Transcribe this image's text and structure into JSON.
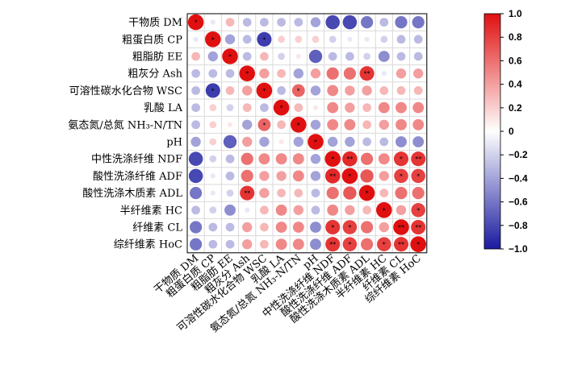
{
  "chart_data": {
    "type": "heatmap",
    "title": "",
    "variables": [
      "干物质 DM",
      "粗蛋白质 CP",
      "粗脂肪 EE",
      "粗灰分 Ash",
      "可溶性碳水化合物 WSC",
      "乳酸 LA",
      "氨态氮/总氮 NH₃-N/TN",
      "pH",
      "中性洗涤纤维 NDF",
      "酸性洗涤纤维 ADF",
      "酸性洗涤木质素 ADL",
      "半纤维素 HC",
      "纤维素 CL",
      "综纤维素 HoC"
    ],
    "matrix": [
      [
        1.0,
        -0.1,
        0.3,
        -0.3,
        -0.3,
        -0.3,
        -0.3,
        -0.4,
        -0.8,
        -0.8,
        -0.6,
        -0.3,
        -0.6,
        -0.6
      ],
      [
        -0.1,
        1.0,
        -0.4,
        -0.3,
        -0.85,
        0.2,
        0.2,
        0.2,
        -0.2,
        -0.1,
        -0.1,
        -0.2,
        -0.3,
        -0.3
      ],
      [
        0.3,
        -0.4,
        1.0,
        -0.3,
        0.3,
        -0.2,
        0.1,
        -0.7,
        -0.3,
        -0.3,
        -0.2,
        -0.5,
        -0.3,
        -0.3
      ],
      [
        -0.3,
        -0.3,
        -0.3,
        1.0,
        0.4,
        0.3,
        -0.4,
        0.4,
        0.6,
        0.6,
        0.85,
        -0.1,
        0.4,
        0.4
      ],
      [
        -0.3,
        -0.85,
        0.3,
        0.4,
        1.0,
        -0.3,
        0.65,
        -0.4,
        0.5,
        0.4,
        0.4,
        0.3,
        0.3,
        0.3
      ],
      [
        -0.3,
        0.2,
        -0.2,
        0.3,
        -0.3,
        1.0,
        0.3,
        0.1,
        0.5,
        0.4,
        0.3,
        0.5,
        0.5,
        0.5
      ],
      [
        -0.3,
        0.2,
        0.1,
        -0.4,
        0.65,
        0.3,
        1.0,
        -0.4,
        0.5,
        0.5,
        0.3,
        0.4,
        0.5,
        0.5
      ],
      [
        -0.4,
        0.2,
        -0.7,
        0.4,
        -0.4,
        0.1,
        -0.4,
        1.0,
        -0.4,
        -0.4,
        -0.3,
        -0.3,
        -0.5,
        -0.5
      ],
      [
        -0.8,
        -0.2,
        -0.3,
        0.6,
        0.5,
        0.5,
        0.5,
        -0.4,
        1.0,
        0.9,
        0.6,
        0.5,
        0.85,
        0.85
      ],
      [
        -0.8,
        -0.1,
        -0.3,
        0.6,
        0.4,
        0.4,
        0.5,
        -0.4,
        0.9,
        1.0,
        0.7,
        0.4,
        0.8,
        0.8
      ],
      [
        -0.6,
        -0.1,
        -0.2,
        0.85,
        0.4,
        0.3,
        0.3,
        -0.3,
        0.6,
        0.7,
        1.0,
        0.3,
        0.6,
        0.6
      ],
      [
        -0.3,
        -0.2,
        -0.5,
        -0.1,
        0.3,
        0.5,
        0.4,
        -0.3,
        0.5,
        0.4,
        0.3,
        1.0,
        0.4,
        0.8
      ],
      [
        -0.6,
        -0.3,
        -0.3,
        0.4,
        0.3,
        0.5,
        0.5,
        -0.5,
        0.85,
        0.8,
        0.6,
        0.4,
        1.0,
        0.85
      ],
      [
        -0.6,
        -0.3,
        -0.3,
        0.4,
        0.3,
        0.5,
        0.5,
        -0.5,
        0.85,
        0.8,
        0.6,
        0.8,
        0.85,
        1.0
      ]
    ],
    "significance": [
      [
        "*",
        "",
        "",
        "",
        "",
        "",
        "",
        "",
        "",
        "",
        "",
        "",
        "",
        ""
      ],
      [
        "",
        "*",
        "",
        "",
        "*",
        "",
        "",
        "",
        "",
        "",
        "",
        "",
        "",
        ""
      ],
      [
        "",
        "",
        "*",
        "",
        "",
        "",
        "",
        "",
        "",
        "",
        "",
        "",
        "",
        ""
      ],
      [
        "",
        "",
        "",
        "*",
        "",
        "",
        "",
        "",
        "",
        "",
        "**",
        "",
        "",
        ""
      ],
      [
        "",
        "*",
        "",
        "",
        "*",
        "",
        "*",
        "",
        "",
        "",
        "",
        "",
        "",
        ""
      ],
      [
        "",
        "",
        "",
        "",
        "",
        "*",
        "",
        "",
        "",
        "",
        "",
        "",
        "",
        ""
      ],
      [
        "",
        "",
        "",
        "",
        "*",
        "",
        "*",
        "",
        "",
        "",
        "",
        "",
        "",
        ""
      ],
      [
        "",
        "",
        "",
        "",
        "",
        "",
        "",
        "*",
        "",
        "",
        "",
        "",
        "",
        ""
      ],
      [
        "",
        "",
        "",
        "",
        "",
        "",
        "",
        "",
        "*",
        "**",
        "",
        "",
        "*",
        "**"
      ],
      [
        "",
        "",
        "",
        "",
        "",
        "",
        "",
        "",
        "**",
        "*",
        "",
        "",
        "*",
        "*"
      ],
      [
        "",
        "",
        "",
        "**",
        "",
        "",
        "",
        "",
        "",
        "",
        "*",
        "",
        "",
        ""
      ],
      [
        "",
        "",
        "",
        "",
        "",
        "",
        "",
        "",
        "",
        "",
        "",
        "*",
        "",
        "*"
      ],
      [
        "",
        "",
        "",
        "",
        "",
        "",
        "",
        "",
        "*",
        "*",
        "",
        "",
        "**",
        "**"
      ],
      [
        "",
        "",
        "",
        "",
        "",
        "",
        "",
        "",
        "**",
        "*",
        "",
        "*",
        "**",
        "*"
      ]
    ],
    "colorbar": {
      "range": [
        -1.0,
        1.0
      ],
      "ticks": [
        "1.0",
        "0.8",
        "0.6",
        "0.4",
        "0.2",
        "0",
        "−0.2",
        "−0.4",
        "−0.6",
        "−0.8",
        "−1.0"
      ],
      "low_color": "#1a1aa0",
      "mid_color": "#ffffff",
      "high_color": "#e01010"
    },
    "grid": true
  }
}
